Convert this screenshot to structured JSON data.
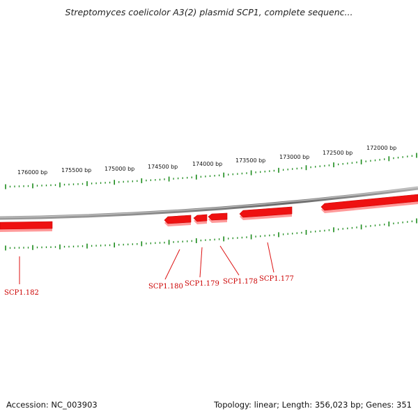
{
  "title": "Streptomyces coelicolor A3(2) plasmid SCP1, complete sequenc...",
  "footer": {
    "accession": "Accession: NC_003903",
    "summary": "Topology: linear; Length: 356,023 bp; Genes: 351"
  },
  "colors": {
    "tick": "#1a8a1a",
    "gene": "#ee1111",
    "gene_label": "#cc0000",
    "backbone": "#808080"
  },
  "scale_labels": [
    "176000 bp",
    "175500 bp",
    "175000 bp",
    "174500 bp",
    "174000 bp",
    "173500 bp",
    "173000 bp",
    "172500 bp",
    "172000 bp"
  ],
  "genes": [
    {
      "name": "SCP1.182"
    },
    {
      "name": "SCP1.180"
    },
    {
      "name": "SCP1.179"
    },
    {
      "name": "SCP1.178"
    },
    {
      "name": "SCP1.177"
    }
  ]
}
